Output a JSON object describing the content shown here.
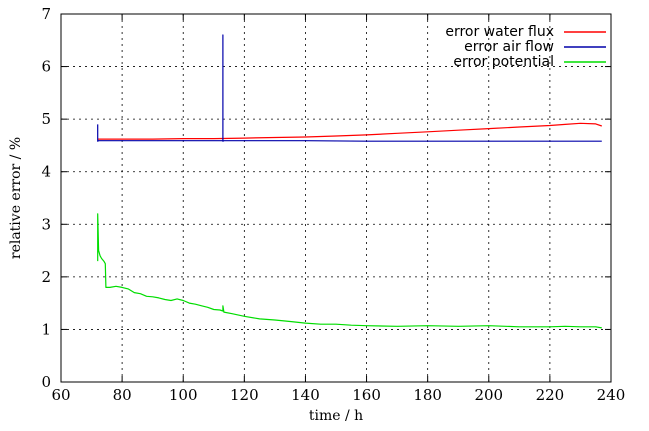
{
  "chart_data": {
    "type": "line",
    "title": "",
    "xlabel": "time / h",
    "ylabel": "relative error / %",
    "xlim": [
      60,
      240
    ],
    "ylim": [
      0,
      7
    ],
    "xticks": [
      60,
      80,
      100,
      120,
      140,
      160,
      180,
      200,
      220,
      240
    ],
    "yticks": [
      0,
      1,
      2,
      3,
      4,
      5,
      6,
      7
    ],
    "grid": true,
    "legend_position": "top-right",
    "series": [
      {
        "name": "error water flux",
        "color": "#ff0000",
        "x": [
          72,
          80,
          90,
          100,
          110,
          120,
          130,
          140,
          150,
          160,
          170,
          180,
          190,
          200,
          210,
          220,
          225,
          230,
          235,
          237
        ],
        "y": [
          4.62,
          4.62,
          4.62,
          4.63,
          4.63,
          4.64,
          4.65,
          4.66,
          4.68,
          4.7,
          4.73,
          4.76,
          4.79,
          4.82,
          4.85,
          4.88,
          4.9,
          4.92,
          4.91,
          4.87
        ]
      },
      {
        "name": "error air flow",
        "color": "#0000aa",
        "x": [
          72,
          72,
          72.3,
          80,
          90,
          100,
          110,
          113,
          113,
          113,
          113.3,
          120,
          140,
          160,
          180,
          200,
          220,
          237
        ],
        "y": [
          4.9,
          4.58,
          4.59,
          4.59,
          4.59,
          4.59,
          4.59,
          4.59,
          6.6,
          4.58,
          4.59,
          4.59,
          4.59,
          4.58,
          4.58,
          4.58,
          4.58,
          4.58
        ]
      },
      {
        "name": "error potential",
        "color": "#00dd00",
        "x": [
          72,
          72,
          72.3,
          72.8,
          73.3,
          74,
          74.5,
          74.7,
          76,
          78,
          80,
          82,
          84,
          86,
          88,
          90,
          92,
          94,
          96,
          98,
          100,
          102,
          104,
          106,
          108,
          110,
          112,
          113,
          113,
          113.3,
          116,
          120,
          125,
          130,
          135,
          140,
          145,
          150,
          155,
          160,
          170,
          180,
          190,
          200,
          210,
          220,
          225,
          230,
          235,
          237
        ],
        "y": [
          2.3,
          3.2,
          2.5,
          2.4,
          2.35,
          2.3,
          2.25,
          1.8,
          1.8,
          1.82,
          1.8,
          1.77,
          1.7,
          1.68,
          1.63,
          1.62,
          1.6,
          1.57,
          1.55,
          1.58,
          1.55,
          1.5,
          1.48,
          1.45,
          1.42,
          1.38,
          1.37,
          1.35,
          1.45,
          1.33,
          1.3,
          1.25,
          1.2,
          1.18,
          1.15,
          1.12,
          1.1,
          1.1,
          1.08,
          1.07,
          1.06,
          1.07,
          1.06,
          1.07,
          1.05,
          1.05,
          1.06,
          1.05,
          1.05,
          1.03
        ]
      }
    ]
  }
}
